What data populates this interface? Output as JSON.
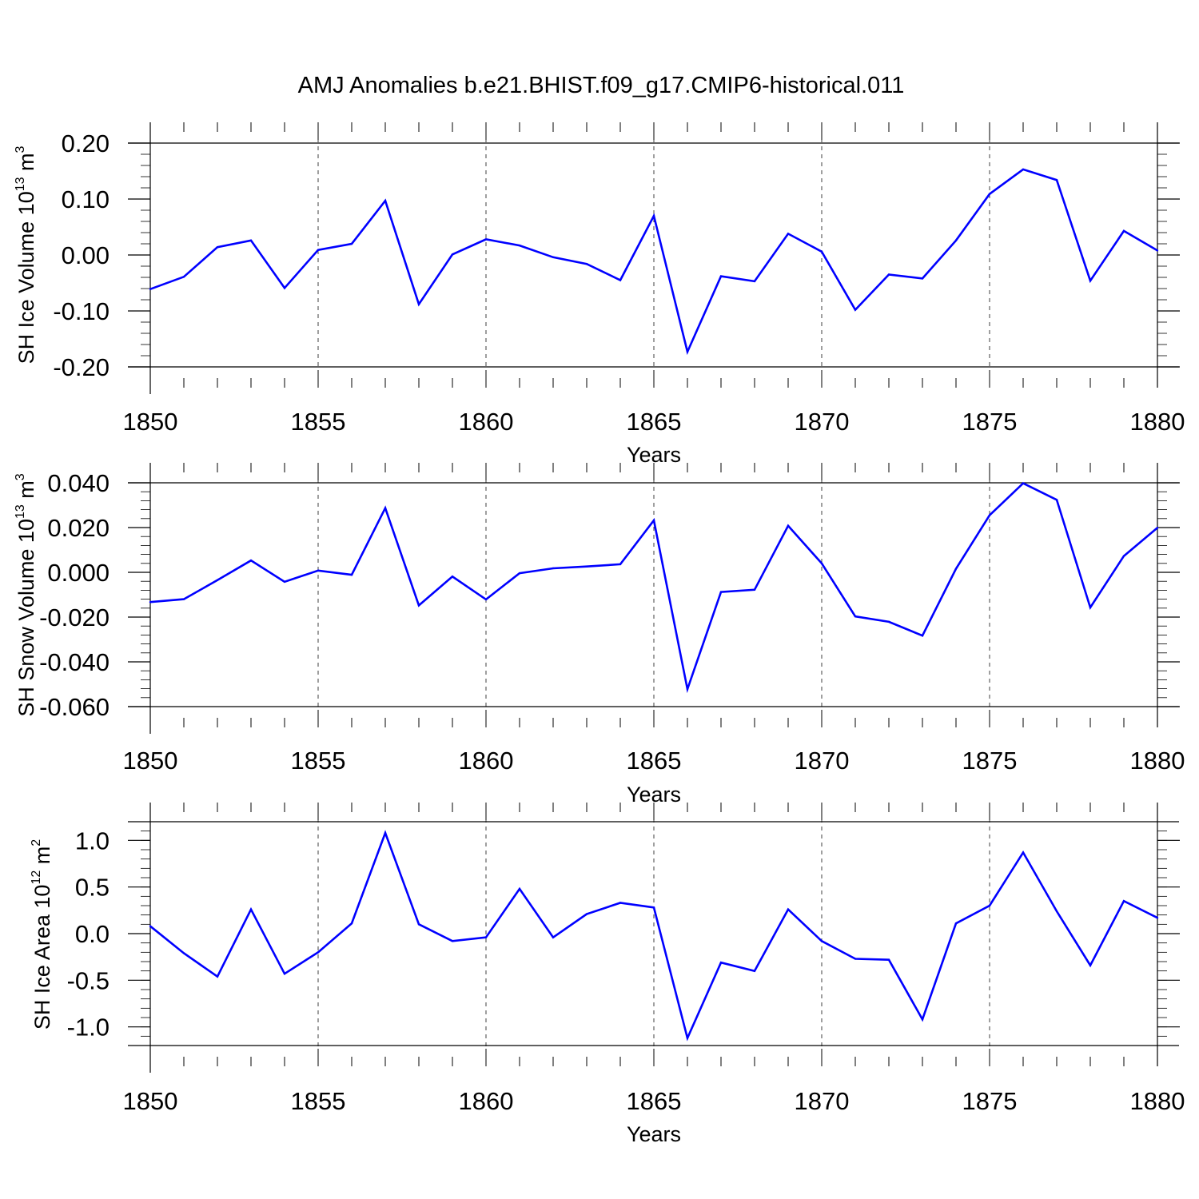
{
  "figure": {
    "title": "AMJ Anomalies b.e21.BHIST.f09_g17.CMIP6-historical.011"
  },
  "colors": {
    "series": "#0000ff",
    "axis": "#000000",
    "grid": "#000000"
  },
  "chart_data": [
    {
      "type": "line",
      "title": "AMJ Anomalies b.e21.BHIST.f09_g17.CMIP6-historical.011",
      "xlabel": "Years",
      "ylabel": {
        "main": "SH Ice Volume 10",
        "sup": "13",
        "unit": " m",
        "unit_sup": "3"
      },
      "xlim": [
        1850,
        1880
      ],
      "ylim": [
        -0.2,
        0.2
      ],
      "xticks": [
        "1850",
        "1855",
        "1860",
        "1865",
        "1870",
        "1875",
        "1880"
      ],
      "yticks": [
        {
          "value": 0.2,
          "label": "0.20"
        },
        {
          "value": 0.1,
          "label": "0.10"
        },
        {
          "value": 0.0,
          "label": "0.00"
        },
        {
          "value": -0.1,
          "label": "-0.10"
        },
        {
          "value": -0.2,
          "label": "-0.20"
        }
      ],
      "x": [
        1850,
        1851,
        1852,
        1853,
        1854,
        1855,
        1856,
        1857,
        1858,
        1859,
        1860,
        1861,
        1862,
        1863,
        1864,
        1865,
        1866,
        1867,
        1868,
        1869,
        1870,
        1871,
        1872,
        1873,
        1874,
        1875,
        1876,
        1877,
        1878,
        1879,
        1880
      ],
      "values": [
        -0.061,
        -0.039,
        0.014,
        0.026,
        -0.059,
        0.009,
        0.02,
        0.097,
        -0.088,
        0.001,
        0.028,
        0.017,
        -0.004,
        -0.016,
        -0.045,
        0.07,
        -0.173,
        -0.038,
        -0.047,
        0.038,
        0.006,
        -0.098,
        -0.035,
        -0.042,
        0.026,
        0.109,
        0.153,
        0.134,
        -0.046,
        0.043,
        0.008
      ]
    },
    {
      "type": "line",
      "xlabel": "Years",
      "ylabel": {
        "main": "SH Snow Volume 10",
        "sup": "13",
        "unit": " m",
        "unit_sup": "3"
      },
      "xlim": [
        1850,
        1880
      ],
      "ylim": [
        -0.06,
        0.04
      ],
      "xticks": [
        "1850",
        "1855",
        "1860",
        "1865",
        "1870",
        "1875",
        "1880"
      ],
      "yticks": [
        {
          "value": 0.04,
          "label": "0.040"
        },
        {
          "value": 0.02,
          "label": "0.020"
        },
        {
          "value": 0.0,
          "label": "0.000"
        },
        {
          "value": -0.02,
          "label": "-0.020"
        },
        {
          "value": -0.04,
          "label": "-0.040"
        },
        {
          "value": -0.06,
          "label": "-0.060"
        }
      ],
      "x": [
        1850,
        1851,
        1852,
        1853,
        1854,
        1855,
        1856,
        1857,
        1858,
        1859,
        1860,
        1861,
        1862,
        1863,
        1864,
        1865,
        1866,
        1867,
        1868,
        1869,
        1870,
        1871,
        1872,
        1873,
        1874,
        1875,
        1876,
        1877,
        1878,
        1879,
        1880
      ],
      "values": [
        -0.0133,
        -0.012,
        -0.0035,
        0.0053,
        -0.0042,
        0.0008,
        -0.0011,
        0.0287,
        -0.0148,
        -0.0019,
        -0.0121,
        -0.0004,
        0.0018,
        0.0026,
        0.0036,
        0.0232,
        -0.0522,
        -0.0088,
        -0.0078,
        0.0208,
        0.004,
        -0.0197,
        -0.0221,
        -0.0283,
        0.0016,
        0.0255,
        0.0398,
        0.0324,
        -0.0157,
        0.0073,
        0.0199
      ]
    },
    {
      "type": "line",
      "xlabel": "Years",
      "ylabel": {
        "main": "SH Ice Area 10",
        "sup": "12",
        "unit": " m",
        "unit_sup": "2"
      },
      "xlim": [
        1850,
        1880
      ],
      "ylim": [
        -1.2,
        1.2
      ],
      "xticks": [
        "1850",
        "1855",
        "1860",
        "1865",
        "1870",
        "1875",
        "1880"
      ],
      "yticks": [
        {
          "value": 1.0,
          "label": "1.0"
        },
        {
          "value": 0.5,
          "label": "0.5"
        },
        {
          "value": 0.0,
          "label": "0.0"
        },
        {
          "value": -0.5,
          "label": "-0.5"
        },
        {
          "value": -1.0,
          "label": "-1.0"
        }
      ],
      "x": [
        1850,
        1851,
        1852,
        1853,
        1854,
        1855,
        1856,
        1857,
        1858,
        1859,
        1860,
        1861,
        1862,
        1863,
        1864,
        1865,
        1866,
        1867,
        1868,
        1869,
        1870,
        1871,
        1872,
        1873,
        1874,
        1875,
        1876,
        1877,
        1878,
        1879,
        1880
      ],
      "values": [
        0.08,
        -0.21,
        -0.46,
        0.26,
        -0.43,
        -0.2,
        0.11,
        1.08,
        0.1,
        -0.08,
        -0.04,
        0.48,
        -0.04,
        0.21,
        0.33,
        0.28,
        -1.12,
        -0.31,
        -0.4,
        0.26,
        -0.08,
        -0.27,
        -0.28,
        -0.92,
        0.11,
        0.3,
        0.87,
        0.24,
        -0.34,
        0.35,
        0.17
      ]
    }
  ]
}
